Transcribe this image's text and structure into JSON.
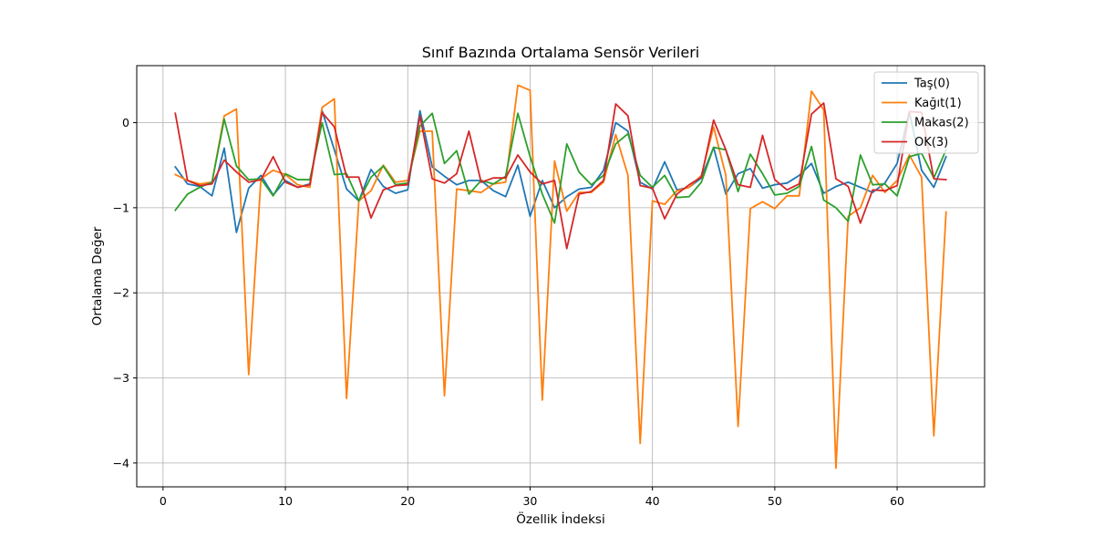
{
  "chart_data": {
    "type": "line",
    "title": "Sınıf Bazında Ortalama Sensör Verileri",
    "xlabel": "Özellik İndeksi",
    "ylabel": "Ortalama Değer",
    "xlim": [
      -2.15,
      67.15
    ],
    "ylim": [
      -4.28,
      0.67
    ],
    "xticks": [
      0,
      10,
      20,
      30,
      40,
      50,
      60
    ],
    "yticks": [
      0,
      -1,
      -2,
      -3,
      -4
    ],
    "ytick_labels": [
      "0",
      "−1",
      "−2",
      "−3",
      "−4"
    ],
    "grid": true,
    "legend": "top-right",
    "x": [
      1,
      2,
      3,
      4,
      5,
      6,
      7,
      8,
      9,
      10,
      11,
      12,
      13,
      14,
      15,
      16,
      17,
      18,
      19,
      20,
      21,
      22,
      23,
      24,
      25,
      26,
      27,
      28,
      29,
      30,
      31,
      32,
      33,
      34,
      35,
      36,
      37,
      38,
      39,
      40,
      41,
      42,
      43,
      44,
      45,
      46,
      47,
      48,
      49,
      50,
      51,
      52,
      53,
      54,
      55,
      56,
      57,
      58,
      59,
      60,
      61,
      62,
      63,
      64
    ],
    "series": [
      {
        "name": "Taş(0)",
        "color": "#1f77b4",
        "values": [
          -0.52,
          -0.72,
          -0.75,
          -0.86,
          -0.3,
          -1.29,
          -0.77,
          -0.62,
          -0.85,
          -0.68,
          -0.76,
          -0.72,
          0.14,
          -0.32,
          -0.78,
          -0.92,
          -0.55,
          -0.75,
          -0.83,
          -0.79,
          0.14,
          -0.52,
          -0.63,
          -0.73,
          -0.68,
          -0.68,
          -0.8,
          -0.87,
          -0.5,
          -1.1,
          -0.68,
          -1.0,
          -0.87,
          -0.78,
          -0.76,
          -0.56,
          0.0,
          -0.1,
          -0.7,
          -0.78,
          -0.46,
          -0.79,
          -0.76,
          -0.65,
          -0.29,
          -0.84,
          -0.6,
          -0.54,
          -0.77,
          -0.73,
          -0.71,
          -0.62,
          -0.48,
          -0.83,
          -0.75,
          -0.7,
          -0.76,
          -0.82,
          -0.71,
          -0.48,
          0.13,
          -0.56,
          -0.76,
          -0.4
        ]
      },
      {
        "name": "Kağıt(1)",
        "color": "#ff7f0e",
        "values": [
          -0.61,
          -0.68,
          -0.72,
          -0.7,
          0.08,
          0.16,
          -2.96,
          -0.66,
          -0.56,
          -0.61,
          -0.73,
          -0.76,
          0.18,
          0.28,
          -3.24,
          -0.92,
          -0.8,
          -0.5,
          -0.7,
          -0.68,
          -0.1,
          -0.1,
          -3.21,
          -0.78,
          -0.8,
          -0.82,
          -0.72,
          -0.7,
          0.44,
          0.38,
          -3.26,
          -0.45,
          -1.04,
          -0.82,
          -0.82,
          -0.7,
          -0.14,
          -0.62,
          -3.77,
          -0.92,
          -0.96,
          -0.8,
          -0.76,
          -0.62,
          -0.05,
          -0.62,
          -3.57,
          -1.01,
          -0.93,
          -1.01,
          -0.86,
          -0.86,
          0.37,
          0.15,
          -4.06,
          -1.1,
          -1.0,
          -0.62,
          -0.82,
          -0.68,
          -0.38,
          -0.64,
          -3.68,
          -1.05
        ]
      },
      {
        "name": "Makas(2)",
        "color": "#2ca02c",
        "values": [
          -1.03,
          -0.84,
          -0.76,
          -0.7,
          0.04,
          -0.51,
          -0.67,
          -0.66,
          -0.86,
          -0.6,
          -0.67,
          -0.67,
          0.0,
          -0.61,
          -0.6,
          -0.92,
          -0.64,
          -0.51,
          -0.73,
          -0.71,
          -0.04,
          0.11,
          -0.48,
          -0.33,
          -0.84,
          -0.68,
          -0.72,
          -0.63,
          0.11,
          -0.4,
          -0.84,
          -1.18,
          -0.25,
          -0.58,
          -0.73,
          -0.62,
          -0.25,
          -0.13,
          -0.62,
          -0.76,
          -0.62,
          -0.88,
          -0.87,
          -0.7,
          -0.29,
          -0.32,
          -0.81,
          -0.37,
          -0.6,
          -0.85,
          -0.83,
          -0.75,
          -0.28,
          -0.91,
          -1.0,
          -1.16,
          -0.38,
          -0.73,
          -0.72,
          -0.86,
          -0.4,
          -0.36,
          -0.65,
          -0.32
        ]
      },
      {
        "name": "OK(3)",
        "color": "#d62728",
        "values": [
          0.11,
          -0.68,
          -0.74,
          -0.72,
          -0.44,
          -0.58,
          -0.7,
          -0.67,
          -0.4,
          -0.7,
          -0.76,
          -0.73,
          0.12,
          -0.05,
          -0.64,
          -0.64,
          -1.12,
          -0.79,
          -0.74,
          -0.73,
          0.08,
          -0.66,
          -0.71,
          -0.6,
          -0.1,
          -0.7,
          -0.65,
          -0.65,
          -0.38,
          -0.58,
          -0.72,
          -0.68,
          -1.48,
          -0.84,
          -0.81,
          -0.68,
          0.22,
          0.08,
          -0.74,
          -0.77,
          -1.13,
          -0.84,
          -0.73,
          -0.64,
          0.03,
          -0.32,
          -0.73,
          -0.76,
          -0.15,
          -0.67,
          -0.79,
          -0.72,
          0.1,
          0.23,
          -0.66,
          -0.75,
          -1.18,
          -0.79,
          -0.8,
          -0.74,
          0.13,
          0.12,
          -0.66,
          -0.67
        ]
      }
    ]
  }
}
